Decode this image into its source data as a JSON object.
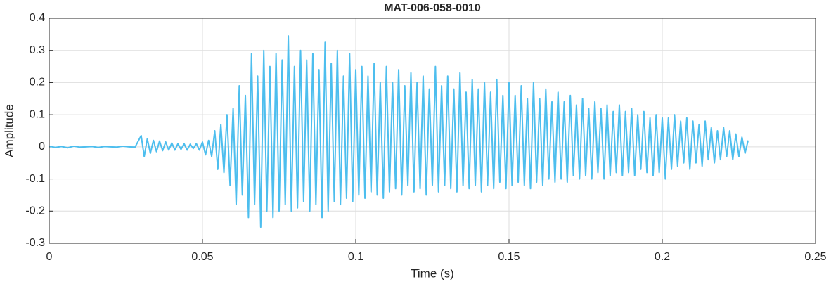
{
  "chart_data": {
    "type": "line",
    "title": "MAT-006-058-0010",
    "xlabel": "Time (s)",
    "ylabel": "Amplitude",
    "xlim": [
      0,
      0.25
    ],
    "ylim": [
      -0.3,
      0.4
    ],
    "xticks": [
      0,
      0.05,
      0.1,
      0.15,
      0.2,
      0.25
    ],
    "yticks": [
      -0.3,
      -0.2,
      -0.1,
      0,
      0.1,
      0.2,
      0.3,
      0.4
    ],
    "grid": true,
    "x": [
      0,
      0.002,
      0.004,
      0.006,
      0.008,
      0.01,
      0.012,
      0.014,
      0.016,
      0.018,
      0.02,
      0.022,
      0.024,
      0.026,
      0.028,
      0.03,
      0.031,
      0.032,
      0.033,
      0.034,
      0.035,
      0.036,
      0.037,
      0.038,
      0.039,
      0.04,
      0.041,
      0.042,
      0.043,
      0.044,
      0.045,
      0.046,
      0.047,
      0.048,
      0.049,
      0.05,
      0.051,
      0.052,
      0.053,
      0.054,
      0.055,
      0.056,
      0.057,
      0.058,
      0.059,
      0.06,
      0.061,
      0.062,
      0.063,
      0.064,
      0.065,
      0.066,
      0.067,
      0.068,
      0.069,
      0.07,
      0.071,
      0.072,
      0.073,
      0.074,
      0.075,
      0.076,
      0.077,
      0.078,
      0.079,
      0.08,
      0.081,
      0.082,
      0.083,
      0.084,
      0.085,
      0.086,
      0.087,
      0.088,
      0.089,
      0.09,
      0.091,
      0.092,
      0.093,
      0.094,
      0.095,
      0.096,
      0.097,
      0.098,
      0.099,
      0.1,
      0.101,
      0.102,
      0.103,
      0.104,
      0.105,
      0.106,
      0.107,
      0.108,
      0.109,
      0.11,
      0.111,
      0.112,
      0.113,
      0.114,
      0.115,
      0.116,
      0.117,
      0.118,
      0.119,
      0.12,
      0.121,
      0.122,
      0.123,
      0.124,
      0.125,
      0.126,
      0.127,
      0.128,
      0.129,
      0.13,
      0.131,
      0.132,
      0.133,
      0.134,
      0.135,
      0.136,
      0.137,
      0.138,
      0.139,
      0.14,
      0.141,
      0.142,
      0.143,
      0.144,
      0.145,
      0.146,
      0.147,
      0.148,
      0.149,
      0.15,
      0.151,
      0.152,
      0.153,
      0.154,
      0.155,
      0.156,
      0.157,
      0.158,
      0.159,
      0.16,
      0.161,
      0.162,
      0.163,
      0.164,
      0.165,
      0.166,
      0.167,
      0.168,
      0.169,
      0.17,
      0.171,
      0.172,
      0.173,
      0.174,
      0.175,
      0.176,
      0.177,
      0.178,
      0.179,
      0.18,
      0.181,
      0.182,
      0.183,
      0.184,
      0.185,
      0.186,
      0.187,
      0.188,
      0.189,
      0.19,
      0.191,
      0.192,
      0.193,
      0.194,
      0.195,
      0.196,
      0.197,
      0.198,
      0.199,
      0.2,
      0.201,
      0.202,
      0.203,
      0.204,
      0.205,
      0.206,
      0.207,
      0.208,
      0.209,
      0.21,
      0.211,
      0.212,
      0.213,
      0.214,
      0.215,
      0.216,
      0.217,
      0.218,
      0.219,
      0.22,
      0.221,
      0.222,
      0.223,
      0.224,
      0.225,
      0.226,
      0.227,
      0.228
    ],
    "series": [
      {
        "color": "#4dbeee",
        "values": [
          0.002,
          -0.002,
          0.001,
          -0.003,
          0.002,
          -0.001,
          0,
          0.001,
          -0.002,
          0.001,
          0,
          -0.001,
          0.002,
          0,
          -0.001,
          0.035,
          -0.03,
          0.025,
          -0.02,
          0.02,
          -0.015,
          0.018,
          -0.012,
          0.015,
          -0.01,
          0.012,
          -0.01,
          0.01,
          -0.008,
          0.01,
          -0.01,
          0.008,
          -0.005,
          0.01,
          -0.01,
          0.015,
          -0.025,
          0.02,
          -0.03,
          0.05,
          -0.07,
          0.07,
          -0.08,
          0.1,
          -0.12,
          0.12,
          -0.18,
          0.19,
          -0.15,
          0.16,
          -0.22,
          0.29,
          -0.18,
          0.22,
          -0.25,
          0.3,
          -0.2,
          0.25,
          -0.22,
          0.29,
          -0.2,
          0.27,
          -0.18,
          0.345,
          -0.2,
          0.25,
          -0.19,
          0.3,
          -0.17,
          0.27,
          -0.2,
          0.29,
          -0.18,
          0.24,
          -0.22,
          0.325,
          -0.2,
          0.26,
          -0.17,
          0.3,
          -0.18,
          0.22,
          -0.16,
          0.29,
          -0.17,
          0.24,
          -0.15,
          0.25,
          -0.16,
          0.22,
          -0.14,
          0.26,
          -0.15,
          0.2,
          -0.16,
          0.25,
          -0.14,
          0.2,
          -0.13,
          0.24,
          -0.15,
          0.19,
          -0.12,
          0.23,
          -0.14,
          0.2,
          -0.13,
          0.22,
          -0.15,
          0.18,
          -0.12,
          0.25,
          -0.14,
          0.19,
          -0.12,
          0.22,
          -0.13,
          0.18,
          -0.14,
          0.23,
          -0.12,
          0.17,
          -0.13,
          0.21,
          -0.12,
          0.18,
          -0.14,
          0.2,
          -0.12,
          0.17,
          -0.13,
          0.21,
          -0.11,
          0.16,
          -0.13,
          0.2,
          -0.12,
          0.16,
          -0.11,
          0.19,
          -0.12,
          0.15,
          -0.13,
          0.2,
          -0.11,
          0.15,
          -0.12,
          0.18,
          -0.1,
          0.14,
          -0.11,
          0.17,
          -0.1,
          0.14,
          -0.11,
          0.16,
          -0.09,
          0.13,
          -0.1,
          0.15,
          -0.09,
          0.12,
          -0.1,
          0.14,
          -0.08,
          0.12,
          -0.1,
          0.13,
          -0.09,
          0.11,
          -0.08,
          0.13,
          -0.09,
          0.11,
          -0.08,
          0.12,
          -0.09,
          0.1,
          -0.07,
          0.11,
          -0.08,
          0.09,
          -0.09,
          0.1,
          -0.08,
          0.09,
          -0.1,
          0.09,
          -0.07,
          0.1,
          -0.06,
          0.08,
          -0.05,
          0.09,
          -0.07,
          0.08,
          -0.05,
          0.07,
          -0.06,
          0.08,
          -0.04,
          0.06,
          -0.05,
          0.05,
          -0.04,
          0.06,
          -0.03,
          0.05,
          -0.04,
          0.04,
          -0.03,
          0.03,
          -0.02,
          0.02
        ]
      }
    ]
  }
}
